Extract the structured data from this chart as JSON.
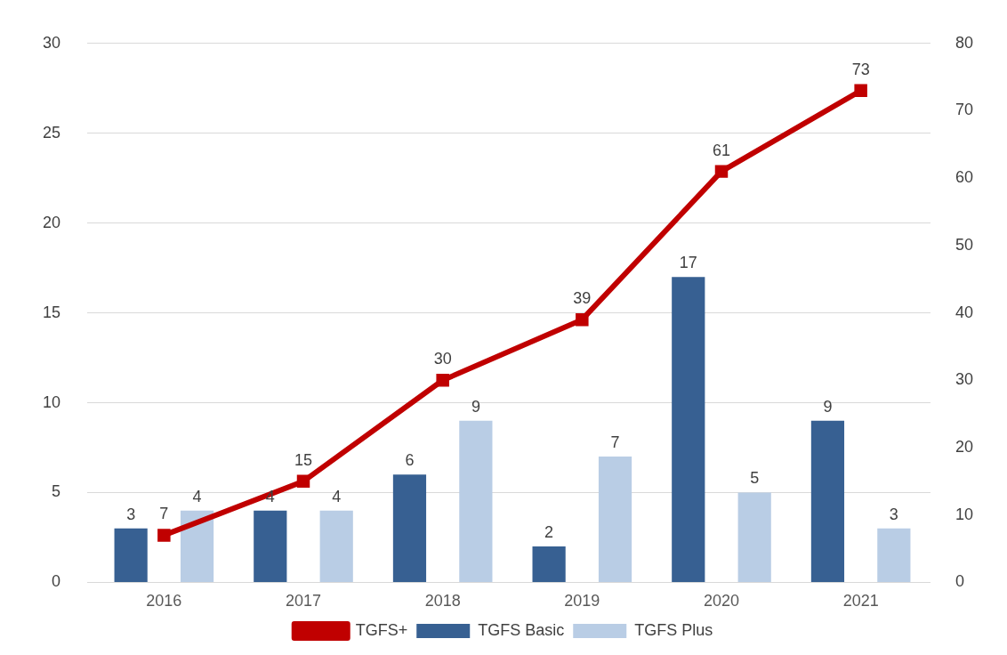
{
  "chart_data": {
    "type": "bar",
    "categories": [
      "2016",
      "2017",
      "2018",
      "2019",
      "2020",
      "2021"
    ],
    "series": [
      {
        "name": "TGFS Basic",
        "color": "#376092",
        "values": [
          3,
          4,
          6,
          2,
          17,
          9
        ]
      },
      {
        "name": "TGFS Plus",
        "color": "#b9cde5",
        "values": [
          4,
          4,
          9,
          7,
          5,
          3
        ]
      },
      {
        "name": "TGFS+",
        "type": "line",
        "axis": "y2",
        "color": "#c00000",
        "marker": "square",
        "values": [
          7,
          15,
          30,
          39,
          61,
          73
        ]
      }
    ],
    "ylim": [
      0,
      30
    ],
    "yticks": [
      0,
      5,
      10,
      15,
      20,
      25,
      30
    ],
    "y2lim": [
      0,
      80
    ],
    "y2ticks": [
      0,
      10,
      20,
      30,
      40,
      50,
      60,
      70,
      80
    ],
    "grid": "y",
    "legend": "bottom",
    "data_labels": true
  }
}
